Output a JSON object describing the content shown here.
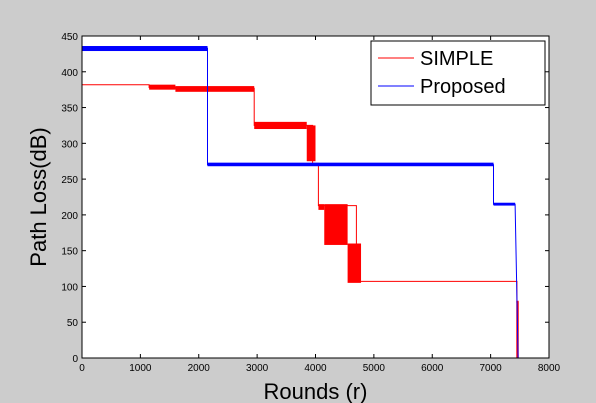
{
  "chart_data": {
    "type": "line",
    "title": "",
    "xlabel": "Rounds (r)",
    "ylabel": "Path Loss(dB)",
    "xlim": [
      0,
      8000
    ],
    "ylim": [
      0,
      450
    ],
    "xticks": [
      0,
      1000,
      2000,
      3000,
      4000,
      5000,
      6000,
      7000,
      8000
    ],
    "yticks": [
      0,
      50,
      100,
      150,
      200,
      250,
      300,
      350,
      400,
      450
    ],
    "grid": false,
    "legend_position": "top-right",
    "series": [
      {
        "name": "SIMPLE",
        "color": "#ff0000",
        "x": [
          0,
          1150,
          1150,
          1600,
          1600,
          2950,
          2950,
          3950,
          3950,
          4050,
          4050,
          4700,
          4700,
          7450,
          7450,
          7470,
          7470,
          8000
        ],
        "y": [
          382,
          382,
          378,
          378,
          377,
          377,
          325,
          325,
          272,
          272,
          213,
          213,
          107,
          107,
          78,
          78,
          0,
          0
        ],
        "bands": [
          {
            "x0": 1150,
            "x1": 1600,
            "y_low": 375,
            "y_high": 382
          },
          {
            "x0": 1600,
            "x1": 2950,
            "y_low": 372,
            "y_high": 380
          },
          {
            "x0": 2950,
            "x1": 3850,
            "y_low": 320,
            "y_high": 330
          },
          {
            "x0": 3850,
            "x1": 4000,
            "y_low": 275,
            "y_high": 325
          },
          {
            "x0": 4050,
            "x1": 4150,
            "y_low": 207,
            "y_high": 215
          },
          {
            "x0": 4150,
            "x1": 4550,
            "y_low": 158,
            "y_high": 215
          },
          {
            "x0": 4550,
            "x1": 4780,
            "y_low": 105,
            "y_high": 160
          },
          {
            "x0": 7440,
            "x1": 7480,
            "y_low": 0,
            "y_high": 80
          }
        ]
      },
      {
        "name": "Proposed",
        "color": "#0000ff",
        "x": [
          0,
          0,
          2150,
          2150,
          7050,
          7050,
          7420,
          7470,
          7470,
          8000
        ],
        "y": [
          0,
          433,
          433,
          270,
          270,
          215,
          215,
          0,
          0,
          0
        ],
        "bands": [
          {
            "x0": 0,
            "x1": 2150,
            "y_low": 429,
            "y_high": 436
          },
          {
            "x0": 2150,
            "x1": 7050,
            "y_low": 268,
            "y_high": 273
          },
          {
            "x0": 7050,
            "x1": 7420,
            "y_low": 213,
            "y_high": 217
          }
        ]
      }
    ]
  }
}
